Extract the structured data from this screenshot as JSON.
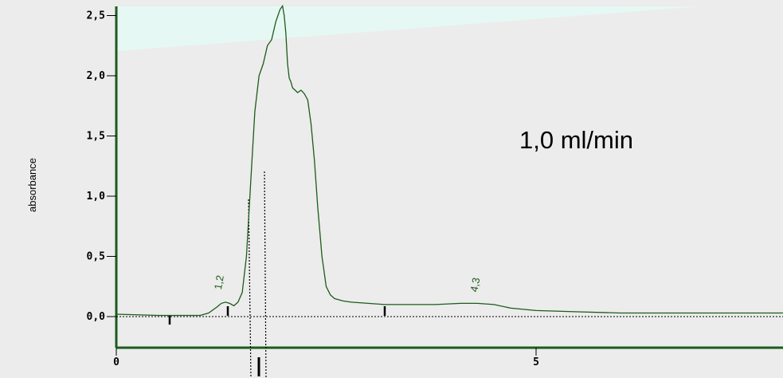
{
  "chart_data": {
    "type": "line",
    "title": "",
    "xlabel": "",
    "ylabel": "absorbance",
    "xlim": [
      0,
      8
    ],
    "ylim": [
      -0.25,
      2.6
    ],
    "x_ticks": [
      {
        "value": 0,
        "label": "0"
      },
      {
        "value": 5,
        "label": "5"
      }
    ],
    "y_ticks": [
      {
        "value": 0.0,
        "label": "0,0"
      },
      {
        "value": 0.5,
        "label": "0,5"
      },
      {
        "value": 1.0,
        "label": "1,0"
      },
      {
        "value": 1.5,
        "label": "1,5"
      },
      {
        "value": 2.0,
        "label": "2,0"
      },
      {
        "value": 2.5,
        "label": "2,5"
      }
    ],
    "annotation": "1,0 ml/min",
    "peak_labels": [
      {
        "x": 1.25,
        "y": 0.22,
        "label": "1,2"
      },
      {
        "x": 4.3,
        "y": 0.2,
        "label": "4,3"
      }
    ],
    "series": [
      {
        "color": "#1c5b1c",
        "x": [
          0,
          0.5,
          1.0,
          1.05,
          1.1,
          1.2,
          1.25,
          1.3,
          1.35,
          1.4,
          1.45,
          1.5,
          1.55,
          1.6,
          1.65,
          1.7,
          1.75,
          1.8,
          1.85,
          1.9,
          1.95,
          1.98,
          2.0,
          2.02,
          2.04,
          2.06,
          2.08,
          2.1,
          2.13,
          2.16,
          2.2,
          2.24,
          2.28,
          2.32,
          2.36,
          2.4,
          2.45,
          2.5,
          2.55,
          2.6,
          2.65,
          2.7,
          2.8,
          3.0,
          3.2,
          3.5,
          3.8,
          4.1,
          4.3,
          4.5,
          4.7,
          5.0,
          5.5,
          6.0,
          7.0,
          8.0
        ],
        "y": [
          0.02,
          0.01,
          0.01,
          0.02,
          0.03,
          0.08,
          0.11,
          0.12,
          0.11,
          0.09,
          0.12,
          0.2,
          0.5,
          1.1,
          1.7,
          2.0,
          2.1,
          2.25,
          2.3,
          2.45,
          2.55,
          2.58,
          2.5,
          2.35,
          2.1,
          1.98,
          1.95,
          1.9,
          1.88,
          1.86,
          1.88,
          1.85,
          1.8,
          1.6,
          1.3,
          0.9,
          0.5,
          0.25,
          0.18,
          0.15,
          0.14,
          0.13,
          0.12,
          0.11,
          0.1,
          0.1,
          0.1,
          0.11,
          0.11,
          0.1,
          0.07,
          0.05,
          0.04,
          0.03,
          0.03,
          0.03
        ]
      }
    ]
  }
}
